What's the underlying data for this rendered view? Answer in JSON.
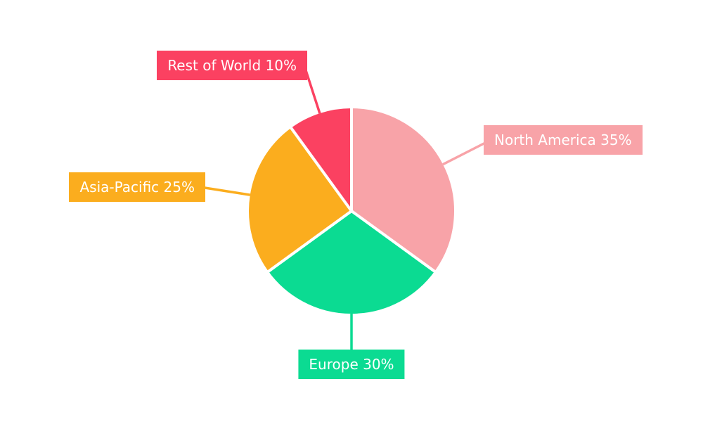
{
  "chart_data": {
    "type": "pie",
    "title": "",
    "unit": "%",
    "direction": "clockwise",
    "start_angle_deg": 0,
    "background_color": "#FFFFFF",
    "label_text_color": "#FFFFFF",
    "separator_color": "#FFFFFF",
    "legend_position": "callout-labels",
    "slices": [
      {
        "label": "North America",
        "value": 35,
        "display": "North America 35%",
        "color": "#F8A3A8"
      },
      {
        "label": "Europe",
        "value": 30,
        "display": "Europe 30%",
        "color": "#0BDB92"
      },
      {
        "label": "Asia-Pacific",
        "value": 25,
        "display": "Asia-Pacific 25%",
        "color": "#FBAD1E"
      },
      {
        "label": "Rest of World",
        "value": 10,
        "display": "Rest of World 10%",
        "color": "#FB4161"
      }
    ]
  }
}
